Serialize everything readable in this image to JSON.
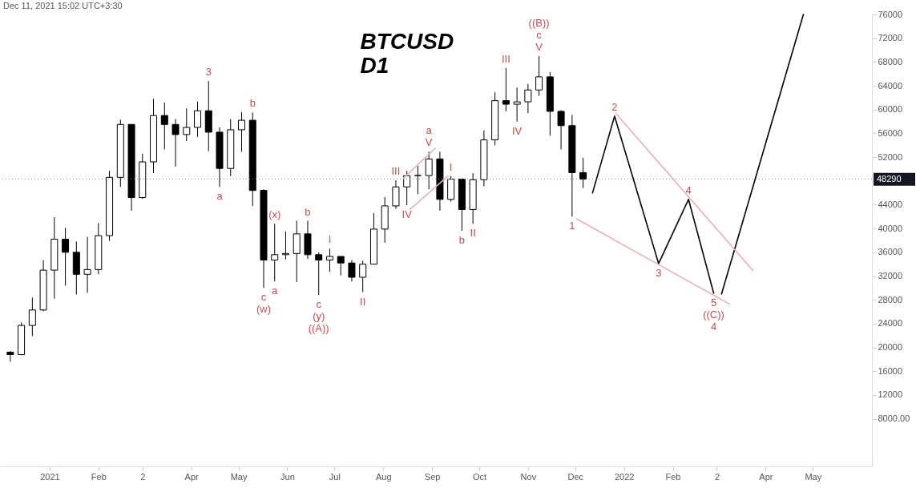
{
  "chart_data": {
    "type": "candlestick",
    "title": "BTCUSD",
    "subtitle": "D1",
    "xlim": [
      "2020-12-03",
      "2022-06-05"
    ],
    "xticks": [
      {
        "value": "2021-01-01",
        "label": "2021"
      },
      {
        "value": "2021-02-01",
        "label": "Feb"
      },
      {
        "value": "2021-03-01",
        "label": "2"
      },
      {
        "value": "2021-04-01",
        "label": "Apr"
      },
      {
        "value": "2021-05-01",
        "label": "May"
      },
      {
        "value": "2021-06-01",
        "label": "Jun"
      },
      {
        "value": "2021-07-01",
        "label": "Jul"
      },
      {
        "value": "2021-08-01",
        "label": "Aug"
      },
      {
        "value": "2021-09-01",
        "label": "Sep"
      },
      {
        "value": "2021-10-01",
        "label": "Oct"
      },
      {
        "value": "2021-11-01",
        "label": "Nov"
      },
      {
        "value": "2021-12-01",
        "label": "Dec"
      },
      {
        "value": "2022-01-01",
        "label": "2022"
      },
      {
        "value": "2022-02-01",
        "label": "Feb"
      },
      {
        "value": "2022-03-01",
        "label": "2"
      },
      {
        "value": "2022-04-01",
        "label": "Apr"
      },
      {
        "value": "2022-05-01",
        "label": "May"
      }
    ],
    "ylim": [
      0,
      76000
    ],
    "yticks": [
      {
        "value": 8000,
        "label": "8000.00"
      },
      12000,
      16000,
      20000,
      24000,
      28000,
      32000,
      36000,
      40000,
      44000,
      52000,
      56000,
      60000,
      64000,
      68000,
      72000,
      76000
    ],
    "series": [
      {
        "color": "#000000",
        "x": [
          "2020-12-07",
          "2020-12-14",
          "2020-12-21",
          "2020-12-28",
          "2021-01-04",
          "2021-01-11",
          "2021-01-18",
          "2021-01-25",
          "2021-02-01",
          "2021-02-08",
          "2021-02-15",
          "2021-02-22",
          "2021-03-01",
          "2021-03-08",
          "2021-03-15",
          "2021-03-22",
          "2021-03-29",
          "2021-04-05",
          "2021-04-12",
          "2021-04-19",
          "2021-04-26",
          "2021-05-03",
          "2021-05-10",
          "2021-05-17",
          "2021-05-24",
          "2021-05-31",
          "2021-06-07",
          "2021-06-14",
          "2021-06-21",
          "2021-06-28",
          "2021-07-05",
          "2021-07-12",
          "2021-07-19",
          "2021-07-26",
          "2021-08-02",
          "2021-08-09",
          "2021-08-16",
          "2021-08-23",
          "2021-08-30",
          "2021-09-06",
          "2021-09-13",
          "2021-09-20",
          "2021-09-27",
          "2021-10-04",
          "2021-10-11",
          "2021-10-18",
          "2021-10-25",
          "2021-11-01",
          "2021-11-08",
          "2021-11-15",
          "2021-11-22",
          "2021-11-29",
          "2021-12-06"
        ],
        "ohlc": [
          [
            19200,
            19400,
            17600,
            18800
          ],
          [
            18800,
            24200,
            18700,
            23700
          ],
          [
            23700,
            28400,
            21900,
            26300
          ],
          [
            26300,
            34700,
            26100,
            33000
          ],
          [
            33000,
            41900,
            28200,
            38200
          ],
          [
            38200,
            40100,
            30400,
            36000
          ],
          [
            36000,
            37800,
            28900,
            32300
          ],
          [
            32300,
            38600,
            29200,
            33100
          ],
          [
            33100,
            40900,
            32300,
            38800
          ],
          [
            38800,
            49700,
            37900,
            48600
          ],
          [
            48600,
            58300,
            47000,
            57500
          ],
          [
            57500,
            57500,
            43000,
            45200
          ],
          [
            45200,
            52600,
            45000,
            51200
          ],
          [
            51200,
            61800,
            49300,
            59000
          ],
          [
            59000,
            61200,
            53300,
            57500
          ],
          [
            57500,
            58400,
            50400,
            55800
          ],
          [
            55800,
            60200,
            54700,
            57000
          ],
          [
            57000,
            61300,
            55400,
            59800
          ],
          [
            59800,
            64800,
            53000,
            56200
          ],
          [
            56200,
            57000,
            47000,
            50100
          ],
          [
            50100,
            58400,
            48800,
            56600
          ],
          [
            56600,
            59600,
            52900,
            58200
          ],
          [
            58200,
            59500,
            43800,
            46400
          ],
          [
            46400,
            46600,
            30000,
            34700
          ],
          [
            34700,
            40800,
            31100,
            35600
          ],
          [
            35600,
            39500,
            34800,
            35800
          ],
          [
            35800,
            41300,
            31000,
            39100
          ],
          [
            39100,
            41300,
            34900,
            35600
          ],
          [
            35600,
            36000,
            28800,
            34700
          ],
          [
            34700,
            36600,
            32700,
            35300
          ],
          [
            35300,
            35300,
            32100,
            34200
          ],
          [
            34200,
            34700,
            31100,
            31800
          ],
          [
            31800,
            34600,
            29300,
            34000
          ],
          [
            34000,
            42600,
            34000,
            39900
          ],
          [
            39900,
            45300,
            37600,
            43800
          ],
          [
            43800,
            48100,
            43300,
            47000
          ],
          [
            47000,
            49700,
            43900,
            48900
          ],
          [
            48900,
            50500,
            45800,
            48900
          ],
          [
            48900,
            52900,
            46600,
            51700
          ],
          [
            51700,
            52900,
            43000,
            44900
          ],
          [
            44900,
            48800,
            44500,
            48300
          ],
          [
            48300,
            48400,
            39600,
            43200
          ],
          [
            43200,
            49300,
            40800,
            48200
          ],
          [
            48200,
            56500,
            47100,
            54900
          ],
          [
            54900,
            62900,
            54000,
            61500
          ],
          [
            61500,
            67000,
            59700,
            60900
          ],
          [
            60900,
            63700,
            58000,
            61300
          ],
          [
            61300,
            64300,
            59400,
            63300
          ],
          [
            63300,
            69000,
            62300,
            65500
          ],
          [
            65500,
            66300,
            55600,
            59700
          ],
          [
            59700,
            59900,
            53300,
            57300
          ],
          [
            57300,
            59100,
            42000,
            49400
          ],
          [
            49400,
            51900,
            46800,
            48290
          ]
        ]
      },
      {
        "type": "line",
        "color": "#000000",
        "x": [
          "2021-12-12",
          "2021-12-26",
          "2022-01-23",
          "2022-02-11",
          "2022-02-27"
        ],
        "values": [
          46000,
          58900,
          34100,
          44900,
          29100
        ]
      },
      {
        "type": "line",
        "color": "#000000",
        "x": [
          "2022-03-04",
          "2022-04-25"
        ],
        "values": [
          29000,
          76000
        ]
      },
      {
        "type": "line",
        "color": "#e8b0b4",
        "x": [
          "2021-12-27",
          "2022-03-24"
        ],
        "values": [
          59300,
          32900
        ]
      },
      {
        "type": "line",
        "color": "#e8b0b4",
        "x": [
          "2021-12-02",
          "2022-03-09"
        ],
        "values": [
          41600,
          27300
        ]
      },
      {
        "type": "line",
        "color": "#e8b0b4",
        "x": [
          "2021-08-14",
          "2021-09-03"
        ],
        "values": [
          48500,
          53500
        ]
      },
      {
        "type": "line",
        "color": "#e8b0b4",
        "x": [
          "2021-08-18",
          "2021-09-11"
        ],
        "values": [
          43200,
          48800
        ]
      }
    ],
    "ref_lines": [
      {
        "axis": "y",
        "value": 48290,
        "label": "48290",
        "line_style": "dotted",
        "color": "#888888"
      }
    ],
    "annotations": [
      "Dec 11, 2021 15:02 UTC+3:30",
      {
        "text": "3",
        "x": "2021-04-12",
        "y": 64800
      },
      {
        "text": "b",
        "x": "2021-05-10",
        "y": 59500
      },
      {
        "text": "a",
        "x": "2021-04-19",
        "y": 47000
      },
      {
        "text": "(x)",
        "x": "2021-05-24",
        "y": 40800
      },
      {
        "text": "b",
        "x": "2021-06-14",
        "y": 41300
      },
      {
        "text": "c",
        "x": "2021-05-17",
        "y": 30000
      },
      {
        "text": "(w)",
        "x": "2021-05-17",
        "y": 30000
      },
      {
        "text": "a",
        "x": "2021-05-24",
        "y": 31100
      },
      {
        "text": "I",
        "x": "2021-06-28",
        "y": 36600
      },
      {
        "text": "c",
        "x": "2021-06-21",
        "y": 28800
      },
      {
        "text": "(y)",
        "x": "2021-06-21",
        "y": 28800
      },
      {
        "text": "((A))",
        "x": "2021-06-21",
        "y": 28800
      },
      {
        "text": "II",
        "x": "2021-07-19",
        "y": 29300
      },
      {
        "text": "III",
        "x": "2021-08-09",
        "y": 48100
      },
      {
        "text": "IV",
        "x": "2021-08-16",
        "y": 43900
      },
      {
        "text": "V",
        "x": "2021-08-30",
        "y": 52900
      },
      {
        "text": "a",
        "x": "2021-08-30",
        "y": 52900
      },
      {
        "text": "b",
        "x": "2021-09-20",
        "y": 39600
      },
      {
        "text": "II",
        "x": "2021-09-27",
        "y": 40800
      },
      {
        "text": "I",
        "x": "2021-09-13",
        "y": 48800
      },
      {
        "text": "III",
        "x": "2021-10-18",
        "y": 67000
      },
      {
        "text": "IV",
        "x": "2021-10-25",
        "y": 58000
      },
      {
        "text": "V",
        "x": "2021-11-08",
        "y": 69000
      },
      {
        "text": "c",
        "x": "2021-11-08",
        "y": 69000
      },
      {
        "text": "((B))",
        "x": "2021-11-08",
        "y": 69000
      },
      {
        "text": "2",
        "x": "2021-12-26",
        "y": 58900
      },
      {
        "text": "4",
        "x": "2022-02-11",
        "y": 44900
      },
      {
        "text": "1",
        "x": "2021-11-29",
        "y": 42000
      },
      {
        "text": "3",
        "x": "2022-01-23",
        "y": 34100
      },
      {
        "text": "5",
        "x": "2022-02-27",
        "y": 29100
      },
      {
        "text": "((C))",
        "x": "2022-02-27",
        "y": 29100
      },
      {
        "text": "4",
        "x": "2022-02-27",
        "y": 29100
      }
    ]
  }
}
